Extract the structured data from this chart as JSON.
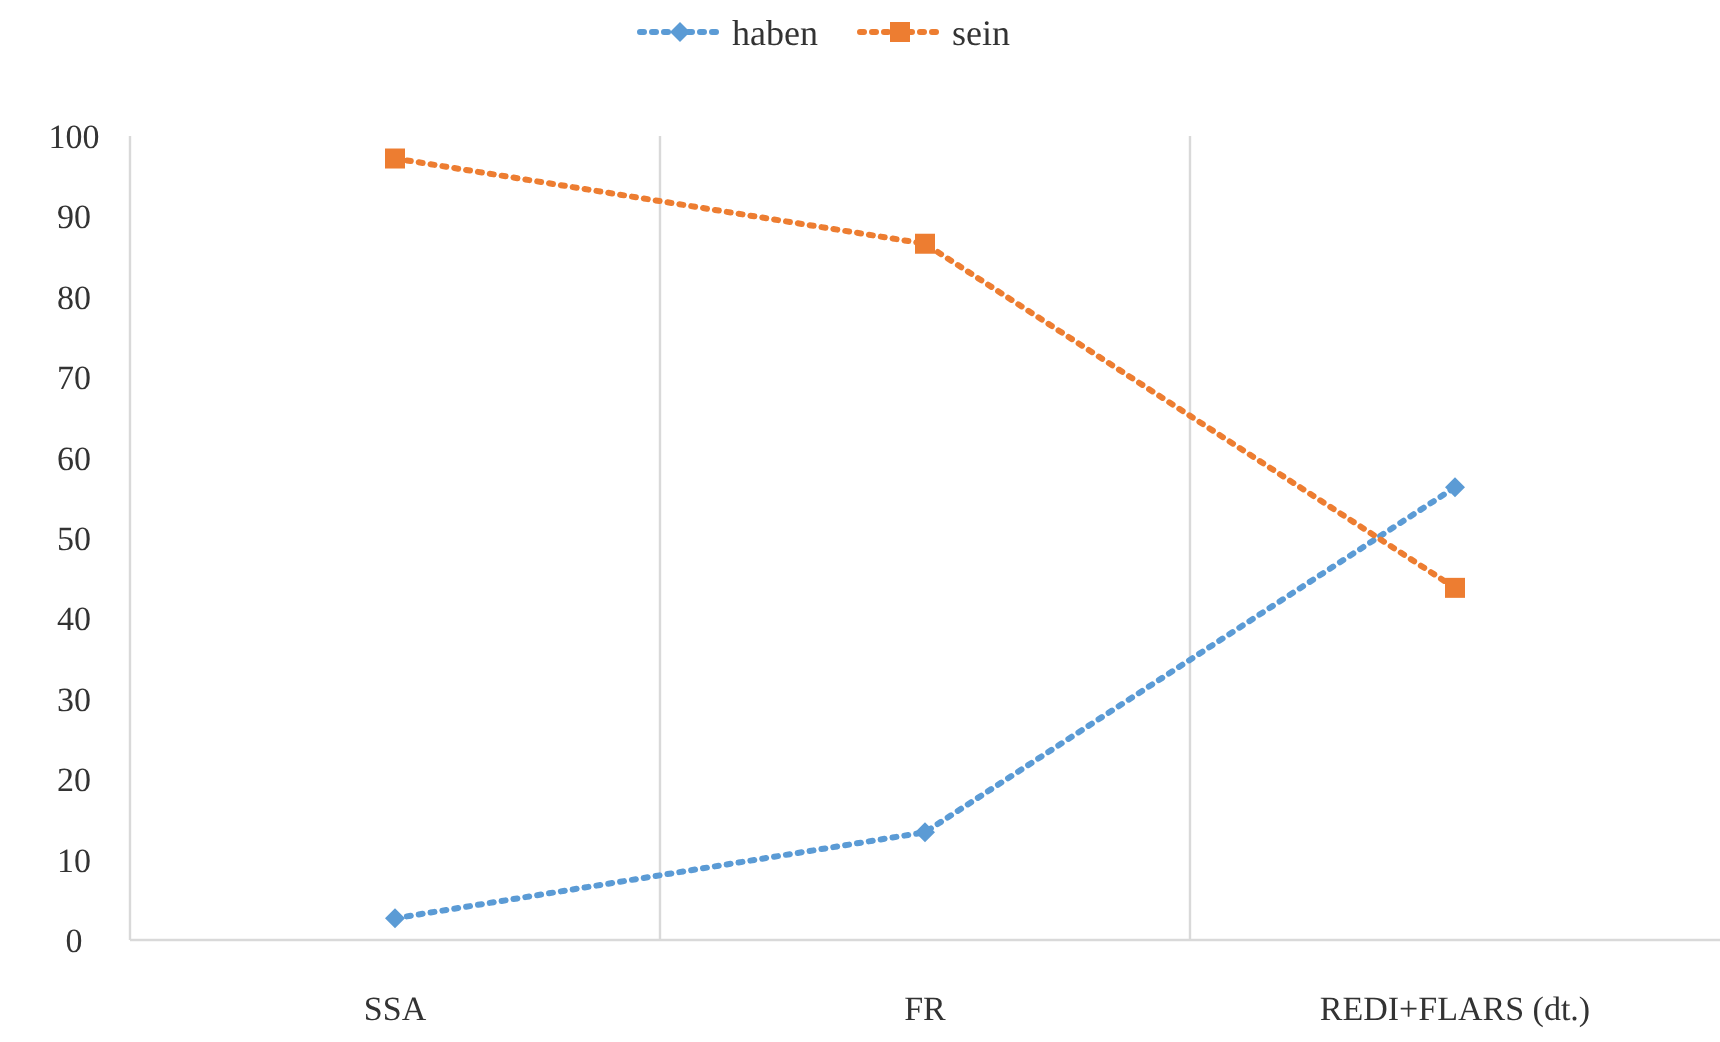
{
  "chart_data": {
    "type": "line",
    "categories": [
      "SSA",
      "FR",
      "REDI+FLARS (dt.)"
    ],
    "series": [
      {
        "name": "haben",
        "color": "#5b9bd5",
        "values": [
          2.7,
          13.4,
          56.3
        ],
        "marker": "diamond"
      },
      {
        "name": "sein",
        "color": "#ed7d31",
        "values": [
          97.2,
          86.6,
          43.8
        ],
        "marker": "square"
      }
    ],
    "ylim": [
      0,
      100
    ],
    "yticks": [
      0,
      10,
      20,
      30,
      40,
      50,
      60,
      70,
      80,
      90,
      100
    ],
    "grid": "x",
    "legend": "top",
    "line_style": "dotted"
  }
}
